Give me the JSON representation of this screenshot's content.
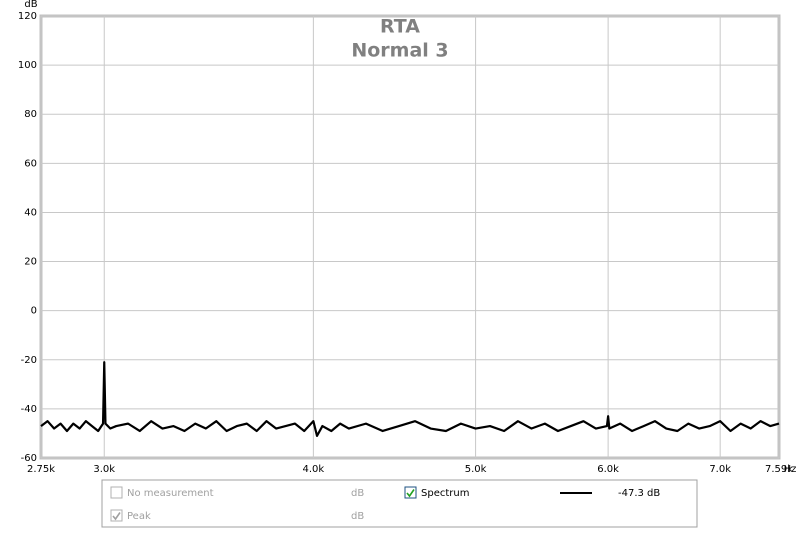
{
  "chart_data": {
    "type": "line",
    "title": "RTA",
    "subtitle": "Normal 3",
    "xlabel": "Hz",
    "ylabel": "dB",
    "xscale": "log",
    "grid": true,
    "xlim": [
      2750,
      7590
    ],
    "ylim": [
      -60,
      120
    ],
    "yticks": [
      -60,
      -40,
      -20,
      0,
      20,
      40,
      60,
      80,
      100,
      120
    ],
    "xticks": [
      {
        "value": 2750,
        "label": "2.75k"
      },
      {
        "value": 3000,
        "label": "3.0k"
      },
      {
        "value": 4000,
        "label": "4.0k"
      },
      {
        "value": 5000,
        "label": "5.0k"
      },
      {
        "value": 6000,
        "label": "6.0k"
      },
      {
        "value": 7000,
        "label": "7.0k"
      },
      {
        "value": 7590,
        "label": "7.59k"
      }
    ],
    "x": [
      2750,
      2775,
      2800,
      2825,
      2850,
      2875,
      2900,
      2925,
      2950,
      2975,
      2995,
      3000,
      3005,
      3025,
      3050,
      3100,
      3150,
      3200,
      3250,
      3300,
      3350,
      3400,
      3450,
      3500,
      3550,
      3600,
      3650,
      3700,
      3750,
      3800,
      3850,
      3900,
      3950,
      4000,
      4020,
      4050,
      4100,
      4150,
      4200,
      4300,
      4400,
      4500,
      4600,
      4700,
      4800,
      4900,
      5000,
      5100,
      5200,
      5300,
      5400,
      5500,
      5600,
      5700,
      5800,
      5900,
      5990,
      6000,
      6010,
      6100,
      6200,
      6300,
      6400,
      6500,
      6600,
      6700,
      6800,
      6900,
      7000,
      7100,
      7200,
      7300,
      7400,
      7500,
      7590
    ],
    "series": [
      {
        "name": "Spectrum",
        "color": "#000000",
        "readout": "-47.3 dB",
        "values": [
          -47,
          -45,
          -48,
          -46,
          -49,
          -46,
          -48,
          -45,
          -47,
          -49,
          -46,
          -21,
          -46,
          -48,
          -47,
          -46,
          -49,
          -45,
          -48,
          -47,
          -49,
          -46,
          -48,
          -45,
          -49,
          -47,
          -46,
          -49,
          -45,
          -48,
          -47,
          -46,
          -49,
          -45,
          -51,
          -47,
          -49,
          -46,
          -48,
          -46,
          -49,
          -47,
          -45,
          -48,
          -49,
          -46,
          -48,
          -47,
          -49,
          -45,
          -48,
          -46,
          -49,
          -47,
          -45,
          -48,
          -47,
          -43,
          -48,
          -46,
          -49,
          -47,
          -45,
          -48,
          -49,
          -46,
          -48,
          -47,
          -45,
          -49,
          -46,
          -48,
          -45,
          -47,
          -46
        ]
      }
    ],
    "inactive_series": [
      {
        "name": "No measurement",
        "readout": "dB"
      },
      {
        "name": "Peak",
        "readout": "dB"
      }
    ]
  }
}
